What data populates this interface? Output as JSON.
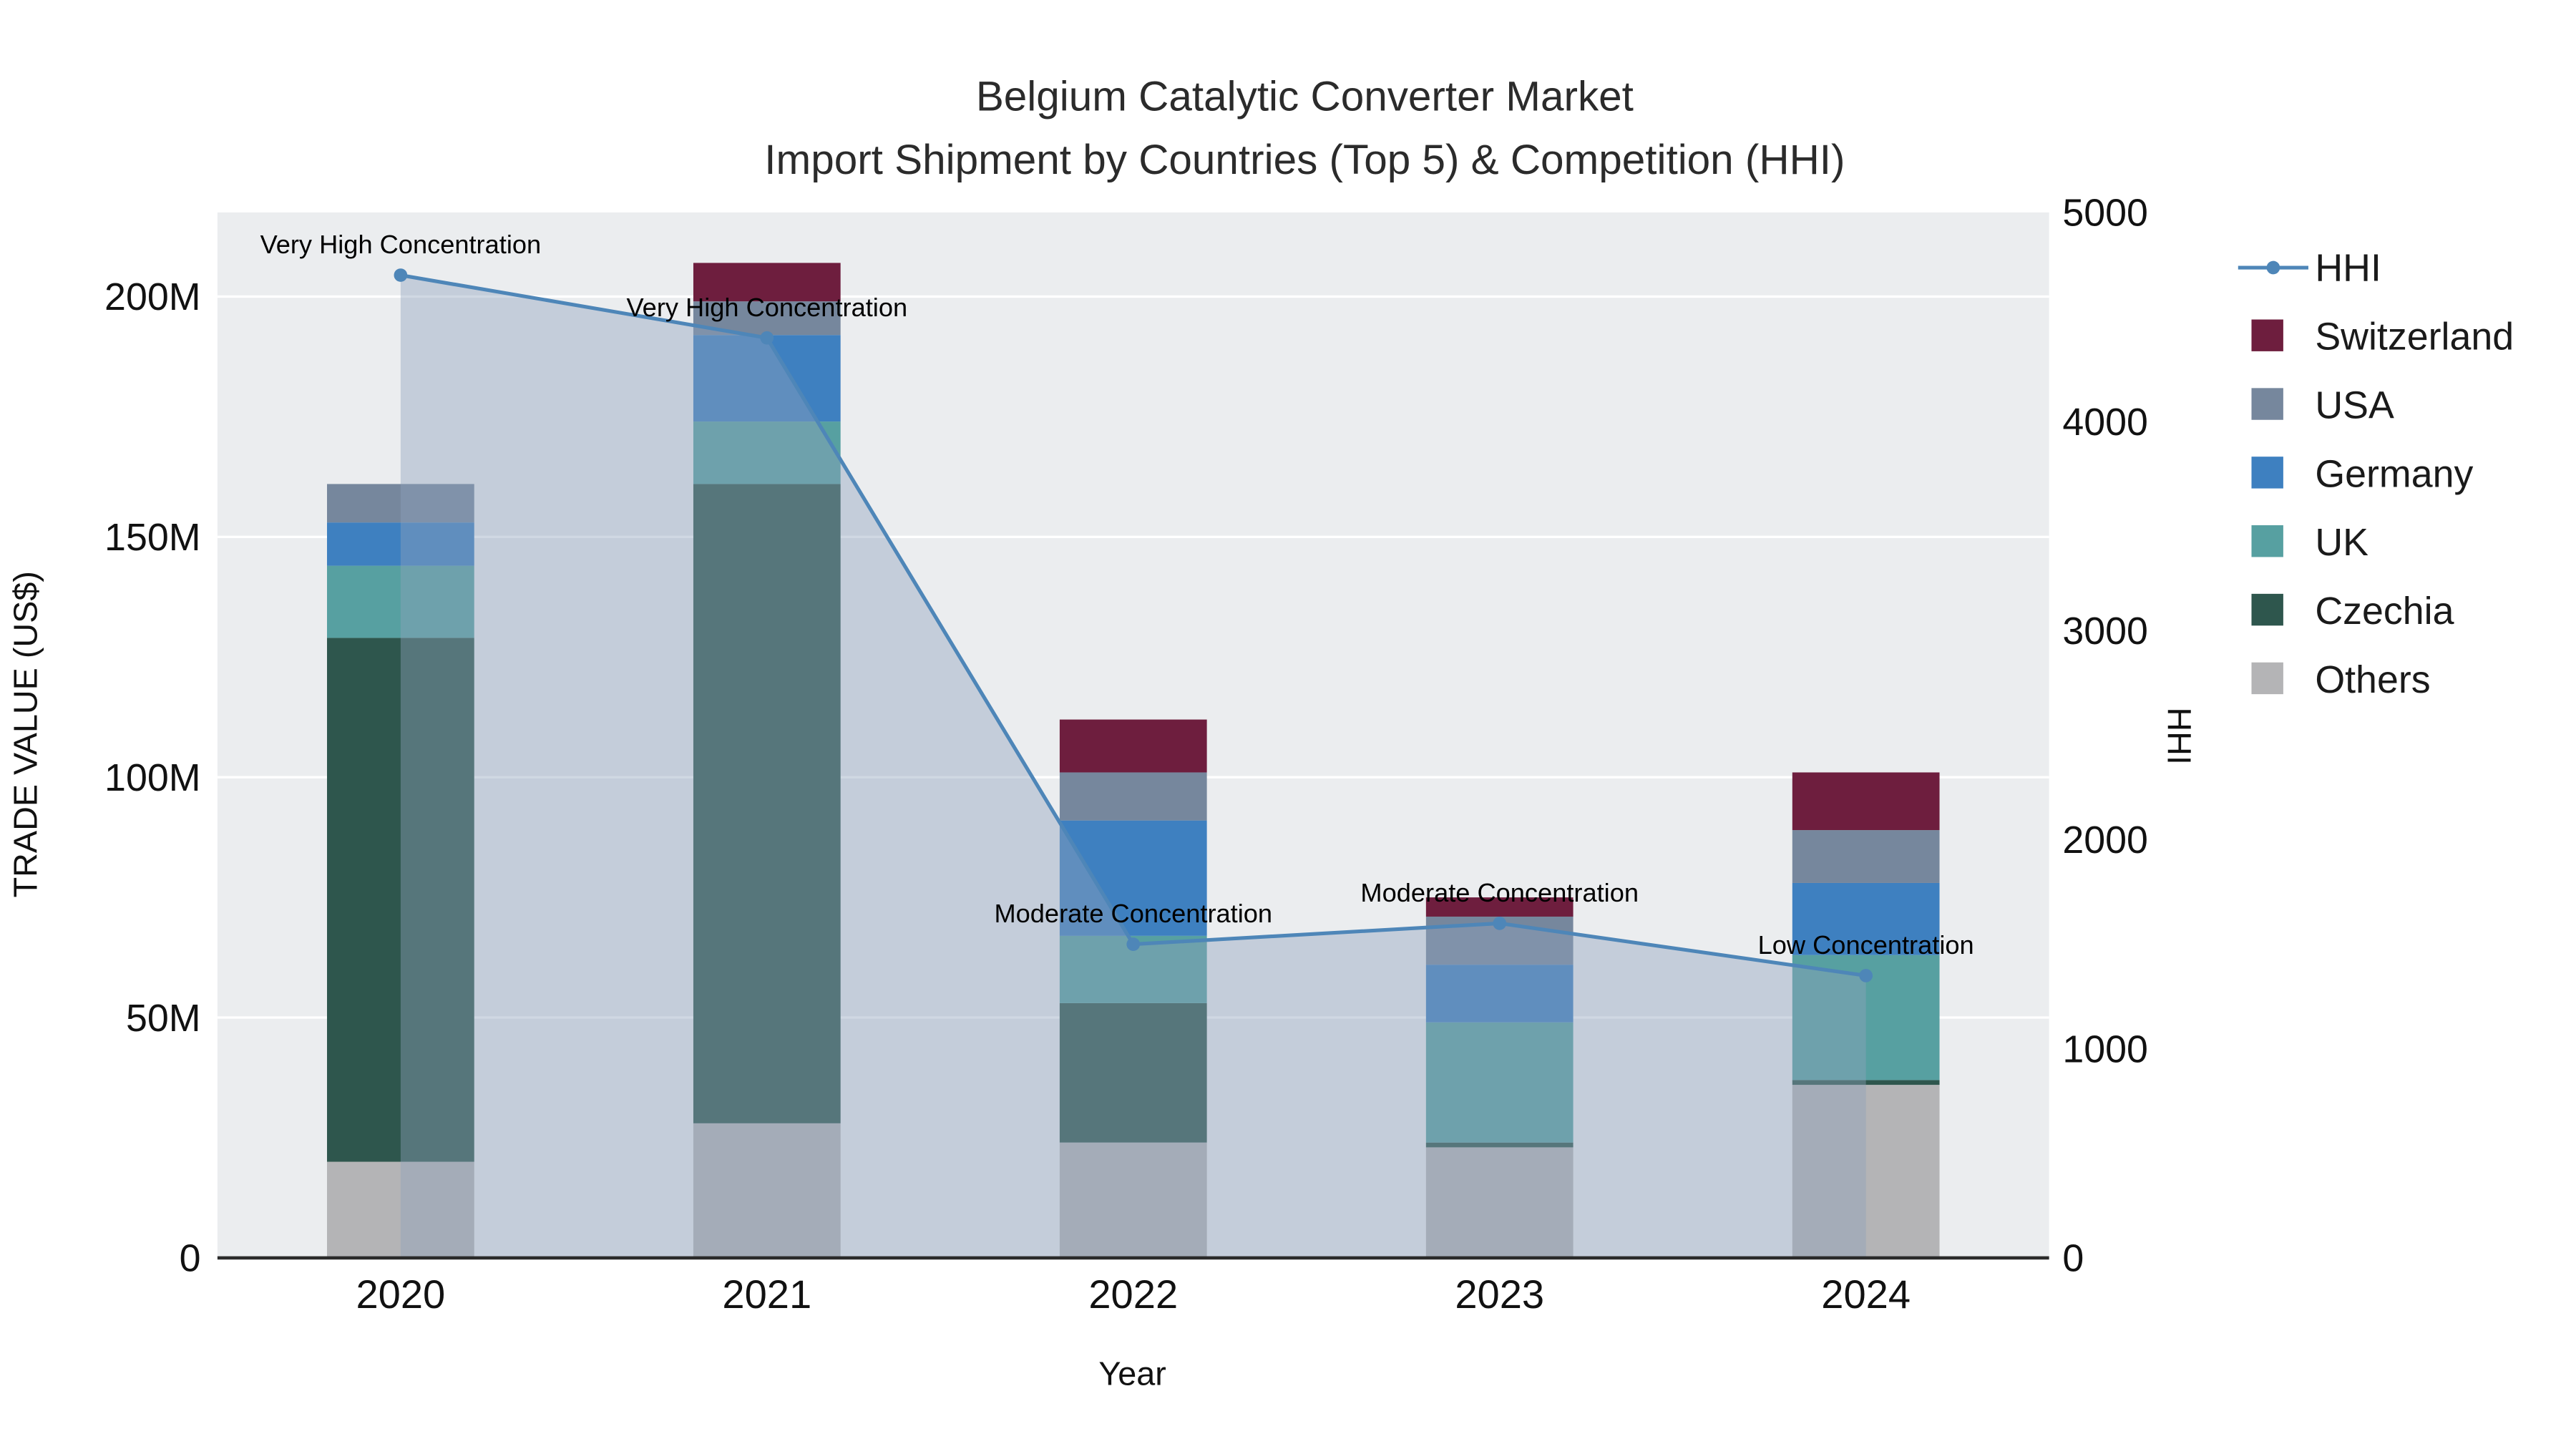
{
  "title": {
    "line1": "Belgium Catalytic Converter Market",
    "line2": "Import Shipment by Countries (Top 5) & Competition (HHI)"
  },
  "chart_data": {
    "type": "bar",
    "subtype": "stacked-bars-with-line-overlay-dual-axis",
    "title": "Belgium Catalytic Converter Market — Import Shipment by Countries (Top 5) & Competition (HHI)",
    "x": [
      2020,
      2021,
      2022,
      2023,
      2024
    ],
    "xlabel": "Year",
    "y_left": {
      "label": "TRADE VALUE (US$)",
      "unit": "M US$",
      "max": 217.5,
      "tick_values": [
        0,
        50,
        100,
        150,
        200
      ],
      "tick_labels": [
        "0",
        "50M",
        "100M",
        "150M",
        "200M"
      ]
    },
    "y_right": {
      "label": "HHI",
      "max": 5000,
      "tick_values": [
        0,
        1000,
        2000,
        3000,
        4000,
        5000
      ],
      "tick_labels": [
        "0",
        "1000",
        "2000",
        "3000",
        "4000",
        "5000"
      ]
    },
    "bar_series": [
      {
        "name": "Others",
        "color": "#b4b4b6",
        "values": [
          20,
          28,
          24,
          23,
          36
        ]
      },
      {
        "name": "Czechia",
        "color": "#2e564d",
        "values": [
          109,
          133,
          29,
          1,
          1
        ]
      },
      {
        "name": "UK",
        "color": "#57a0a1",
        "values": [
          15,
          13,
          14,
          25,
          26
        ]
      },
      {
        "name": "Germany",
        "color": "#3e80c0",
        "values": [
          9,
          18,
          24,
          12,
          15
        ]
      },
      {
        "name": "USA",
        "color": "#76879d",
        "values": [
          8,
          7,
          10,
          10,
          11
        ]
      },
      {
        "name": "Switzerland",
        "color": "#6e1e3e",
        "values": [
          0,
          8,
          11,
          4,
          12
        ]
      }
    ],
    "line_series": {
      "name": "HHI",
      "color": "#4e86b8",
      "fill": "rgba(143,163,188,0.42)",
      "values": [
        4700,
        4400,
        1500,
        1600,
        1350
      ]
    },
    "annotations": [
      {
        "year": 2020,
        "text": "Very High Concentration"
      },
      {
        "year": 2021,
        "text": "Very High Concentration"
      },
      {
        "year": 2022,
        "text": "Moderate Concentration"
      },
      {
        "year": 2023,
        "text": "Moderate Concentration"
      },
      {
        "year": 2024,
        "text": "Low Concentration"
      }
    ],
    "legend_order": [
      "HHI",
      "Switzerland",
      "USA",
      "Germany",
      "UK",
      "Czechia",
      "Others"
    ],
    "legend_position": "right",
    "grid": true,
    "colors": {
      "plot_bg": "#ebedef",
      "paper_bg": "#ffffff",
      "axis_line": "#2a2a2a",
      "gridline": "#ffffff"
    }
  }
}
